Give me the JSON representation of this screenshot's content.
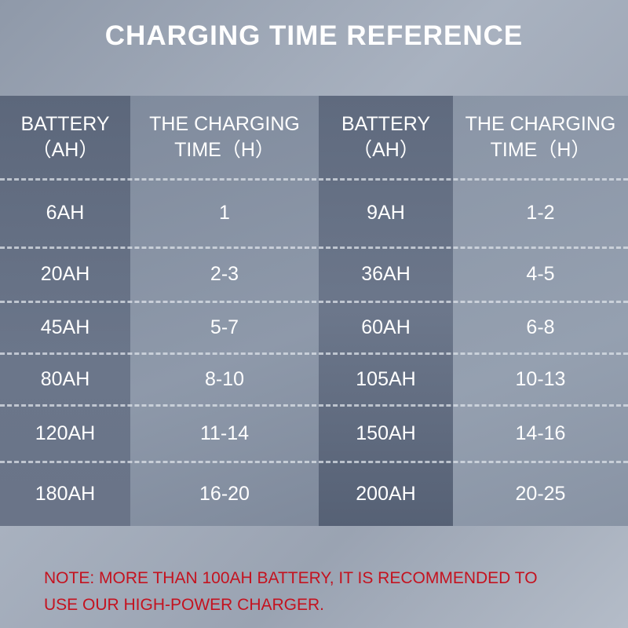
{
  "title": "CHARGING TIME REFERENCE",
  "headers": {
    "battery_line1": "BATTERY",
    "battery_line2": "（AH）",
    "time_line1": "THE CHARGING",
    "time_line2": "TIME（H）"
  },
  "rows": [
    {
      "b1": "6AH",
      "t1": "1",
      "b2": "9AH",
      "t2": "1-2"
    },
    {
      "b1": "20AH",
      "t1": "2-3",
      "b2": "36AH",
      "t2": "4-5"
    },
    {
      "b1": "45AH",
      "t1": "5-7",
      "b2": "60AH",
      "t2": "6-8"
    },
    {
      "b1": "80AH",
      "t1": "8-10",
      "b2": "105AH",
      "t2": "10-13"
    },
    {
      "b1": "120AH",
      "t1": "11-14",
      "b2": "150AH",
      "t2": "14-16"
    },
    {
      "b1": "180AH",
      "t1": "16-20",
      "b2": "200AH",
      "t2": "20-25"
    }
  ],
  "note": {
    "line1": "NOTE: MORE THAN 100AH BATTERY, IT IS RECOMMENDED TO",
    "line2": "USE OUR HIGH-POWER CHARGER."
  },
  "colors": {
    "note": "#c4121f",
    "title": "#ffffff"
  }
}
